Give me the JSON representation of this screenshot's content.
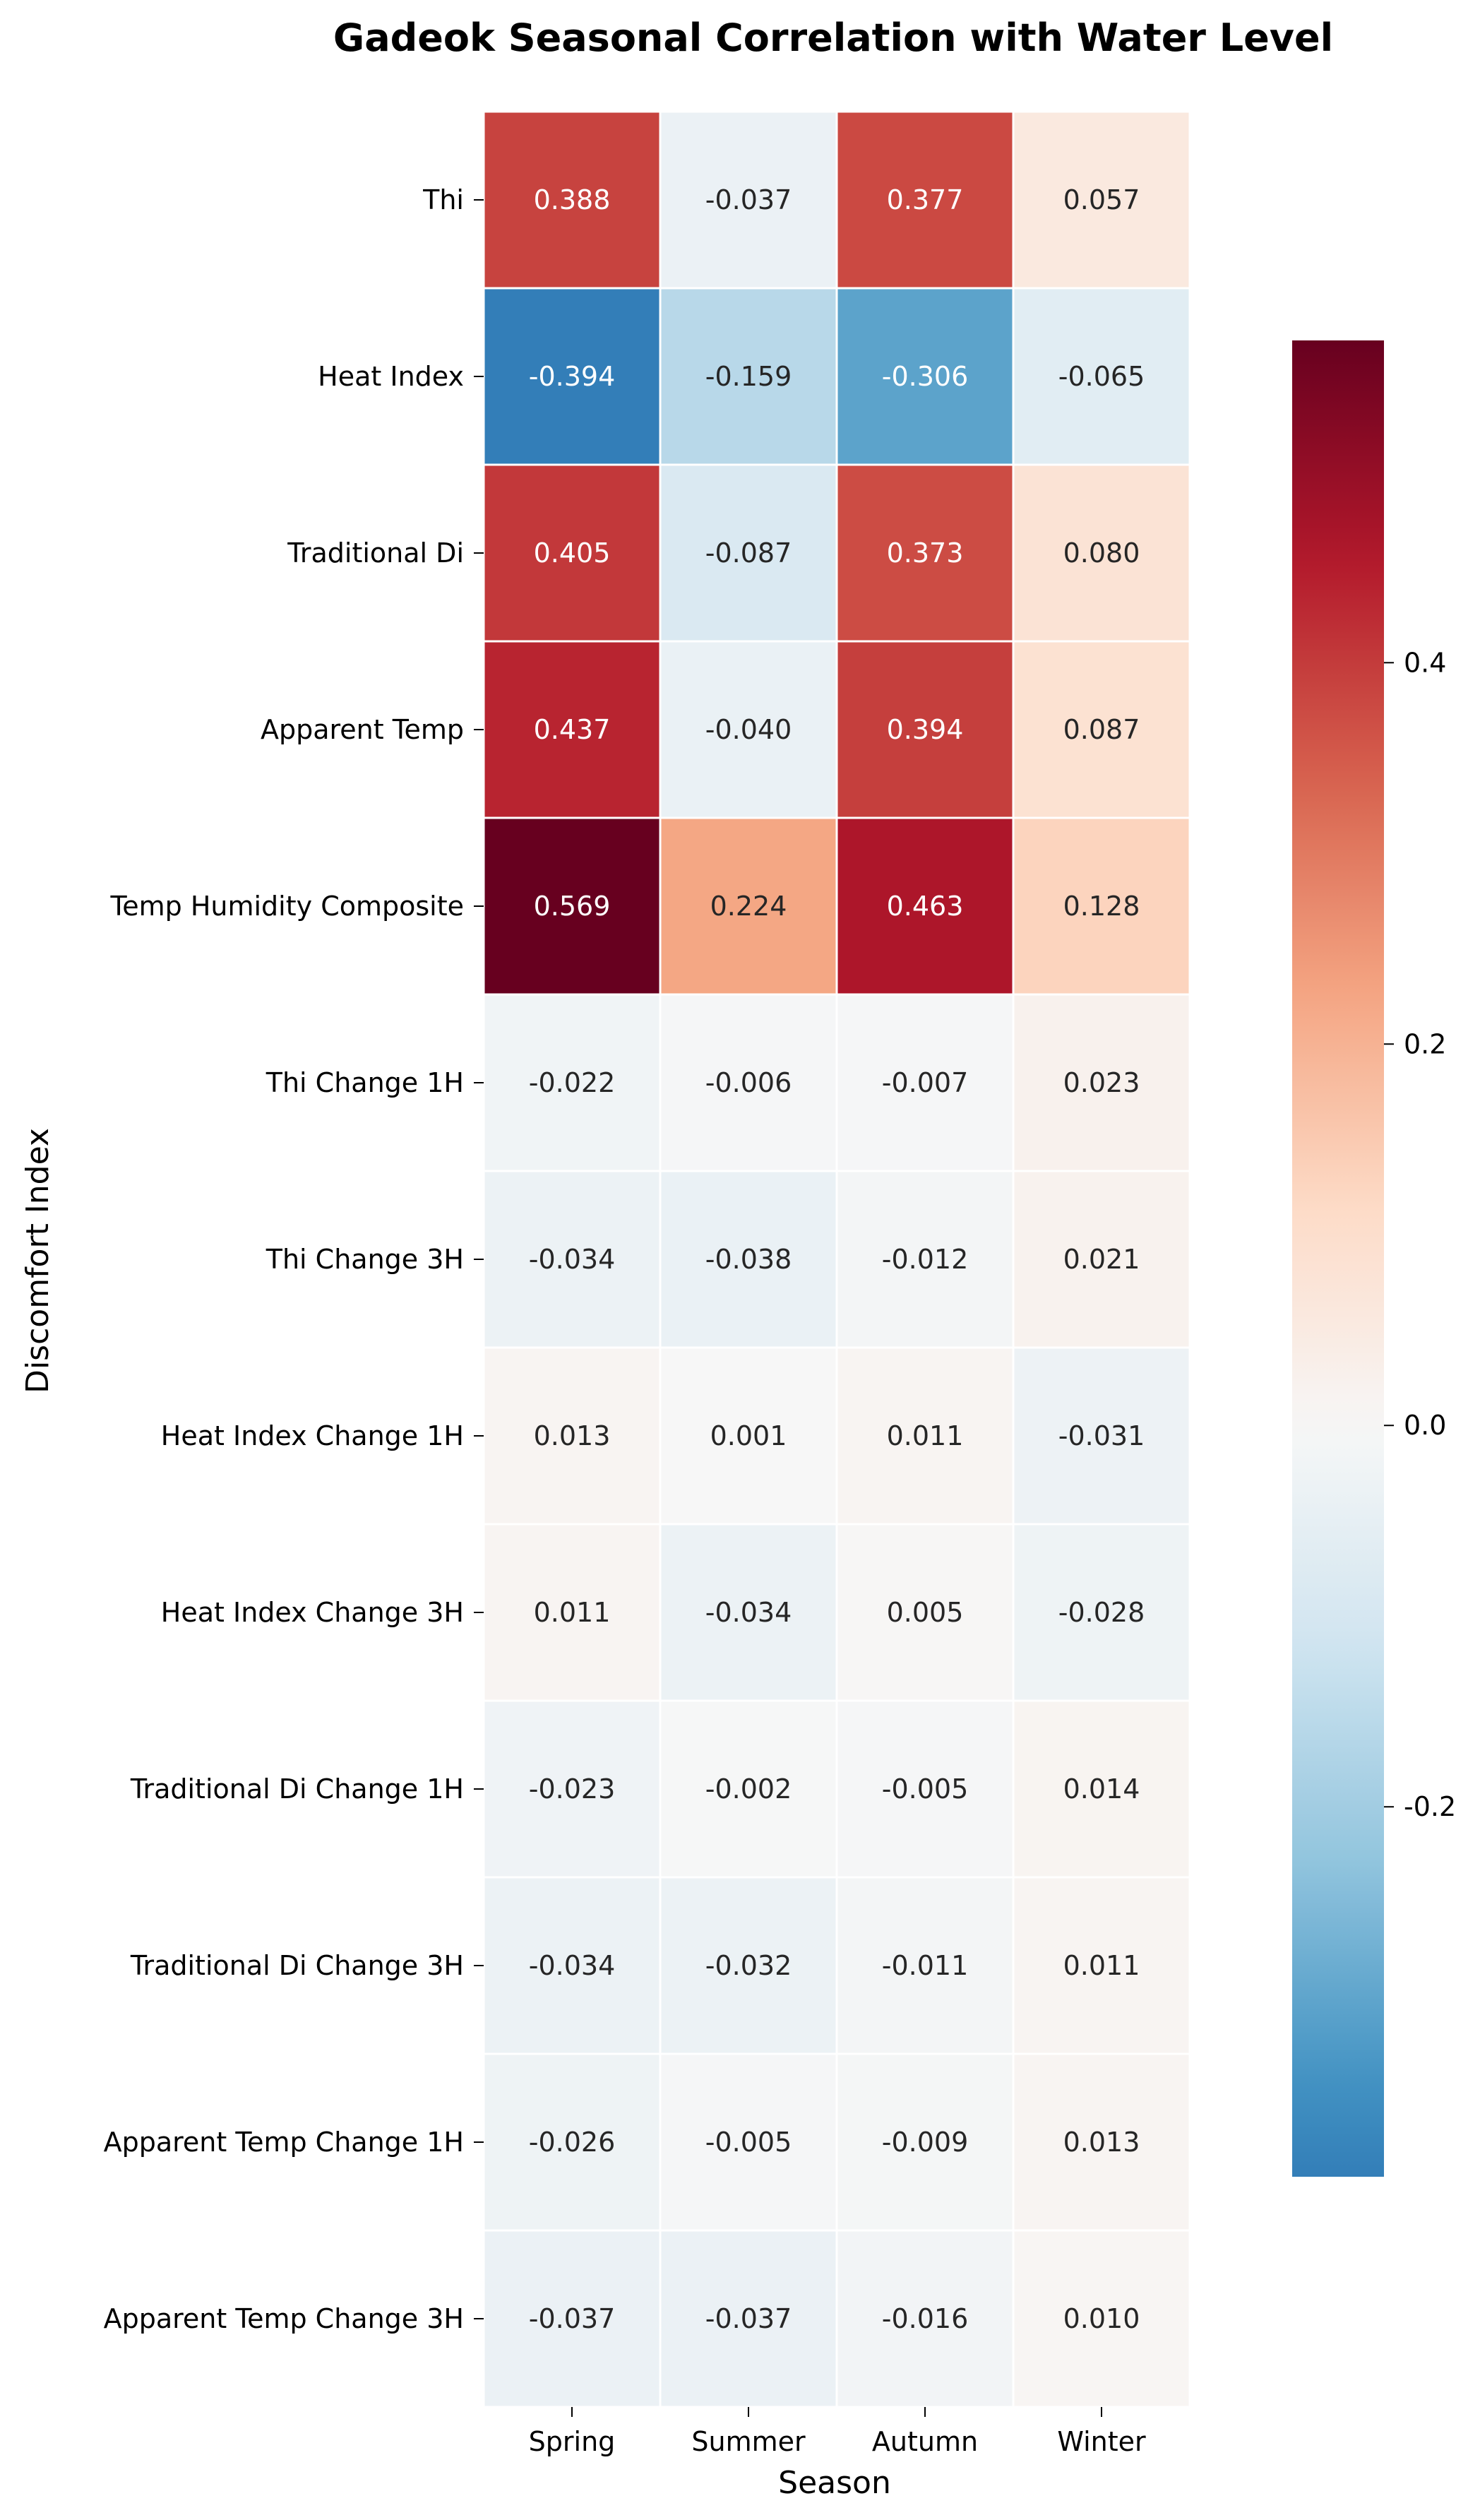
{
  "chart_data": {
    "type": "heatmap",
    "title": "Gadeok Seasonal Correlation with Water Level",
    "xlabel": "Season",
    "ylabel": "Discomfort Index",
    "x_categories": [
      "Spring",
      "Summer",
      "Autumn",
      "Winter"
    ],
    "y_categories": [
      "Thi",
      "Heat Index",
      "Traditional Di",
      "Apparent Temp",
      "Temp Humidity Composite",
      "Thi Change 1H",
      "Thi Change 3H",
      "Heat Index Change 1H",
      "Heat Index Change 3H",
      "Traditional Di Change 1H",
      "Traditional Di Change 3H",
      "Apparent Temp Change 1H",
      "Apparent Temp Change 3H"
    ],
    "values": [
      [
        0.388,
        -0.037,
        0.377,
        0.057
      ],
      [
        -0.394,
        -0.159,
        -0.306,
        -0.065
      ],
      [
        0.405,
        -0.087,
        0.373,
        0.08
      ],
      [
        0.437,
        -0.04,
        0.394,
        0.087
      ],
      [
        0.569,
        0.224,
        0.463,
        0.128
      ],
      [
        -0.022,
        -0.006,
        -0.007,
        0.023
      ],
      [
        -0.034,
        -0.038,
        -0.012,
        0.021
      ],
      [
        0.013,
        0.001,
        0.011,
        -0.031
      ],
      [
        0.011,
        -0.034,
        0.005,
        -0.028
      ],
      [
        -0.023,
        -0.002,
        -0.005,
        0.014
      ],
      [
        -0.034,
        -0.032,
        -0.011,
        0.011
      ],
      [
        -0.026,
        -0.005,
        -0.009,
        0.013
      ],
      [
        -0.037,
        -0.037,
        -0.016,
        0.01
      ]
    ],
    "labels": [
      [
        "0.388",
        "-0.037",
        "0.377",
        "0.057"
      ],
      [
        "-0.394",
        "-0.159",
        "-0.306",
        "-0.065"
      ],
      [
        "0.405",
        "-0.087",
        "0.373",
        "0.080"
      ],
      [
        "0.437",
        "-0.040",
        "0.394",
        "0.087"
      ],
      [
        "0.569",
        "0.224",
        "0.463",
        "0.128"
      ],
      [
        "-0.022",
        "-0.006",
        "-0.007",
        "0.023"
      ],
      [
        "-0.034",
        "-0.038",
        "-0.012",
        "0.021"
      ],
      [
        "0.013",
        "0.001",
        "0.011",
        "-0.031"
      ],
      [
        "0.011",
        "-0.034",
        "0.005",
        "-0.028"
      ],
      [
        "-0.023",
        "-0.002",
        "-0.005",
        "0.014"
      ],
      [
        "-0.034",
        "-0.032",
        "-0.011",
        "0.011"
      ],
      [
        "-0.026",
        "-0.005",
        "-0.009",
        "0.013"
      ],
      [
        "-0.037",
        "-0.037",
        "-0.016",
        "0.010"
      ]
    ],
    "colormap": "RdBu_r",
    "colorbar": {
      "vmin": -0.394,
      "vmax": 0.569,
      "ticks": [
        -0.2,
        0.0,
        0.2,
        0.4
      ],
      "tick_labels": [
        "-0.2",
        "0.0",
        "0.2",
        "0.4"
      ]
    },
    "colors": {
      "colormap_stops": [
        "#053061",
        "#2166ac",
        "#4393c3",
        "#92c5de",
        "#d1e5f0",
        "#f7f7f7",
        "#fddbc7",
        "#f4a582",
        "#d6604d",
        "#b2182b",
        "#67001f"
      ],
      "cell_border": "#ffffff",
      "label_dark": "#262626",
      "label_light": "#ffffff"
    },
    "legend": "right",
    "grid": false
  }
}
